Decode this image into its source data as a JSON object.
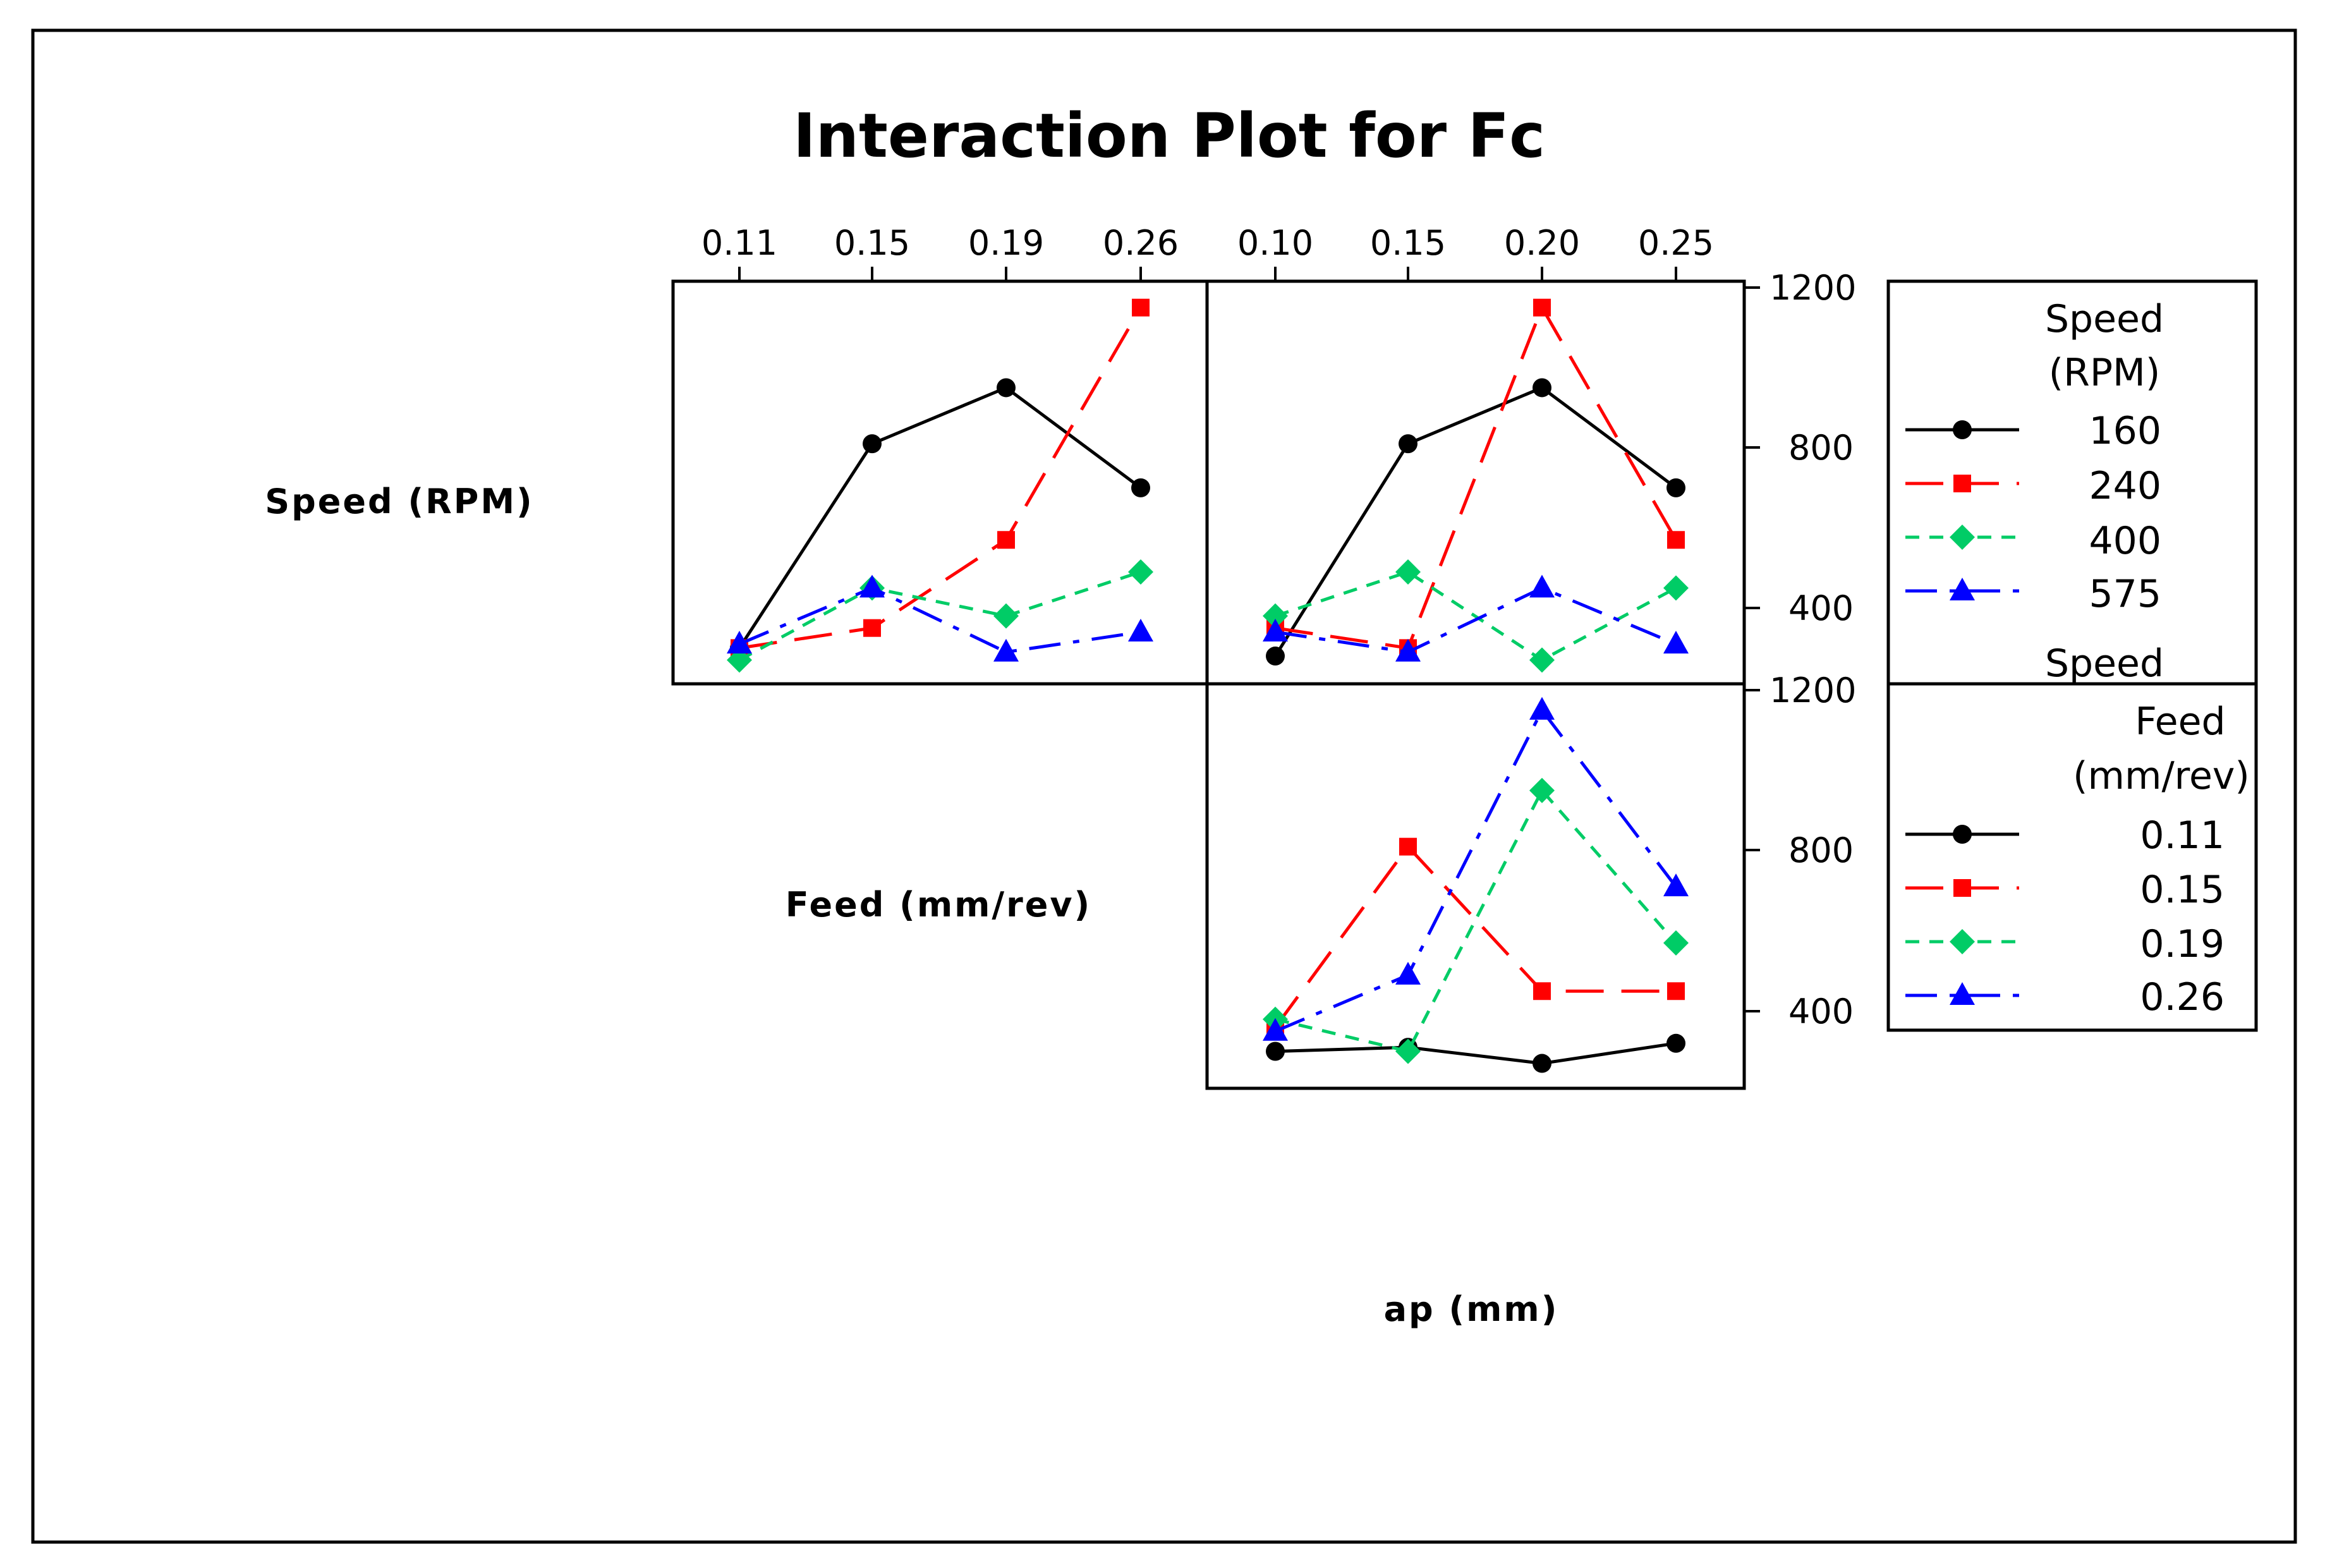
{
  "chart_data": {
    "type": "line",
    "title": "Interaction Plot for Fc",
    "xlabel": "ap (mm)",
    "row_labels": [
      "Speed (RPM)",
      "Feed (mm/rev)"
    ],
    "y_ticks": [
      "1200",
      "800",
      "400"
    ],
    "y_ticks_panel3": [
      "1200",
      "800",
      "400"
    ],
    "ylim": [
      220,
      1200
    ],
    "feed_categories": [
      "0.11",
      "0.15",
      "0.19",
      "0.26"
    ],
    "ap_categories": [
      "0.10",
      "0.15",
      "0.20",
      "0.25"
    ],
    "colors": {
      "black": "#000000",
      "red": "#ff0000",
      "green": "#00cc66",
      "blue": "#0000ff"
    },
    "panels": [
      {
        "id": "speed-vs-feed",
        "x_categories_key": "feed_categories",
        "legend_group": "speed",
        "series": [
          {
            "name": "160",
            "values": [
              300,
              810,
              950,
              700
            ]
          },
          {
            "name": "240",
            "values": [
              300,
              350,
              570,
              1150
            ]
          },
          {
            "name": "400",
            "values": [
              270,
              450,
              380,
              490
            ]
          },
          {
            "name": "575",
            "values": [
              310,
              450,
              290,
              340
            ]
          }
        ]
      },
      {
        "id": "speed-vs-ap",
        "x_categories_key": "ap_categories",
        "legend_group": "speed",
        "series": [
          {
            "name": "160",
            "values": [
              280,
              810,
              950,
              700
            ]
          },
          {
            "name": "240",
            "values": [
              350,
              300,
              1150,
              570
            ]
          },
          {
            "name": "400",
            "values": [
              380,
              490,
              270,
              450
            ]
          },
          {
            "name": "575",
            "values": [
              340,
              290,
              450,
              310
            ]
          }
        ]
      },
      {
        "id": "feed-vs-ap",
        "x_categories_key": "ap_categories",
        "legend_group": "feed",
        "series": [
          {
            "name": "0.11",
            "values": [
              300,
              310,
              270,
              320
            ]
          },
          {
            "name": "0.15",
            "values": [
              360,
              810,
              450,
              450
            ]
          },
          {
            "name": "0.19",
            "values": [
              380,
              300,
              950,
              570
            ]
          },
          {
            "name": "0.26",
            "values": [
              350,
              490,
              1150,
              710
            ]
          }
        ]
      }
    ],
    "legend": {
      "speed": {
        "title_lines": [
          "Speed",
          "(RPM)"
        ],
        "entries": [
          "160",
          "240",
          "400",
          "575"
        ]
      },
      "speed_trailing_label": "Speed",
      "feed": {
        "title_lines": [
          "Feed",
          "(mm/rev)"
        ],
        "entries": [
          "0.11",
          "0.15",
          "0.19",
          "0.26"
        ]
      }
    },
    "series_styles": [
      {
        "color_key": "black",
        "marker": "circle",
        "dash": "none"
      },
      {
        "color_key": "red",
        "marker": "square",
        "dash": "long"
      },
      {
        "color_key": "green",
        "marker": "diamond",
        "dash": "short"
      },
      {
        "color_key": "blue",
        "marker": "triangle",
        "dash": "dashdot"
      }
    ]
  }
}
